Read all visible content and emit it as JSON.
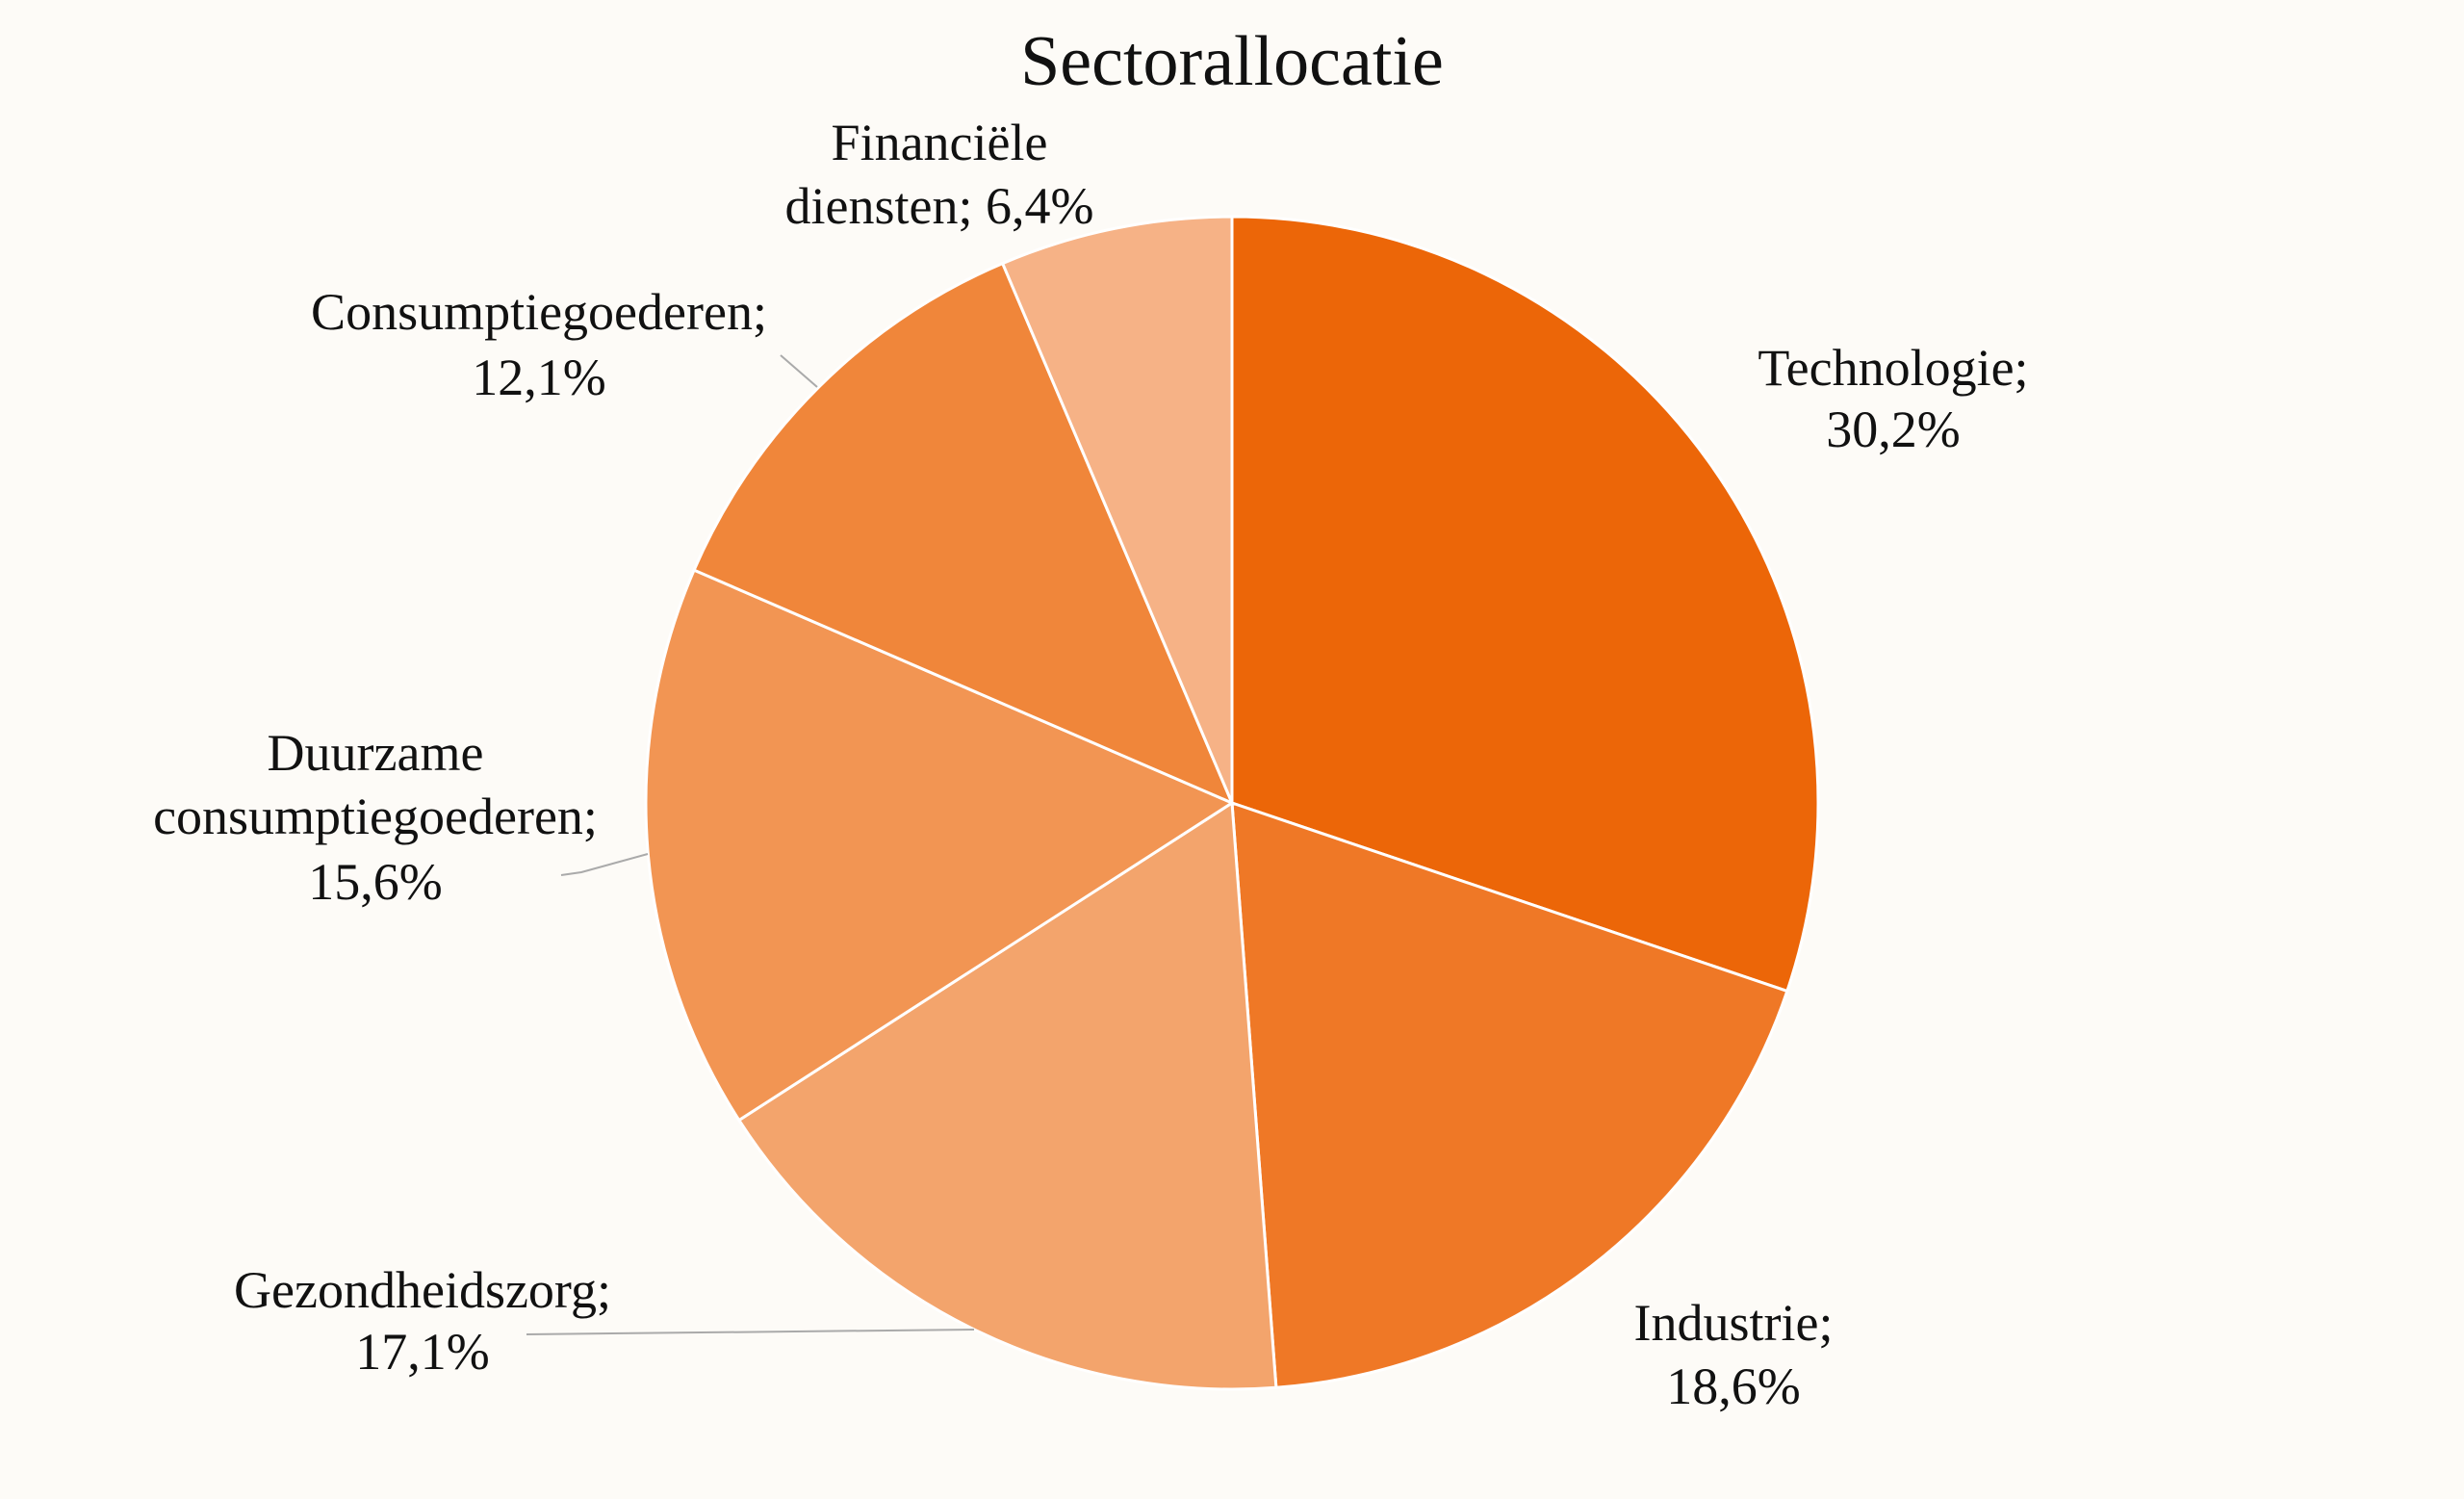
{
  "chart_data": {
    "type": "pie",
    "title": "Sectorallocatie",
    "start_angle": "top, clockwise",
    "slices": [
      {
        "name": "Technologie",
        "value": 30.2,
        "label_lines": [
          "Technologie;",
          "30,2%"
        ],
        "color": "#EC6608"
      },
      {
        "name": "Industrie",
        "value": 18.6,
        "label_lines": [
          "Industrie;",
          "18,6%"
        ],
        "color": "#EF7826"
      },
      {
        "name": "Gezondheidszorg",
        "value": 17.1,
        "label_lines": [
          "Gezondheidszorg;",
          "17,1%"
        ],
        "color": "#F3A46C"
      },
      {
        "name": "Duurzame consumptiegoederen",
        "value": 15.6,
        "label_lines": [
          "Duurzame",
          "consumptiegoederen;",
          "15,6%"
        ],
        "color": "#F29553"
      },
      {
        "name": "Consumptiegoederen",
        "value": 12.1,
        "label_lines": [
          "Consumptiegoederen;",
          "12,1%"
        ],
        "color": "#F0863A"
      },
      {
        "name": "Financiële diensten",
        "value": 6.4,
        "label_lines": [
          "Financiële",
          "diensten; 6,4%"
        ],
        "color": "#F6B286"
      }
    ],
    "legend": "none",
    "data_labels": "category; percentage"
  }
}
